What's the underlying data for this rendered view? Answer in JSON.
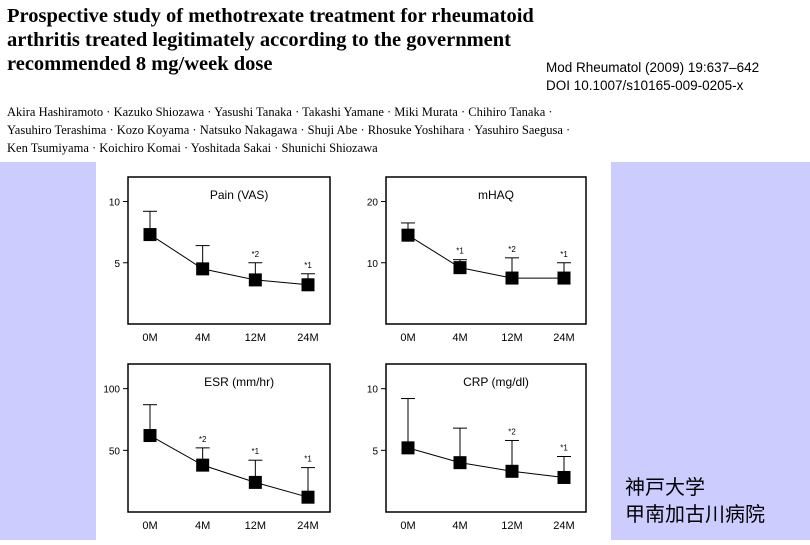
{
  "paper": {
    "title": "Prospective study of methotrexate treatment for rheumatoid arthritis treated legitimately according to the government recommended 8 mg/week dose",
    "title_lines": [
      "Prospective study of methotrexate treatment for rheumatoid",
      "arthritis treated legitimately according to the government",
      "recommended 8 mg/week dose"
    ],
    "journal": "Mod Rheumatol (2009) 19:637–642",
    "doi": "DOI 10.1007/s10165-009-0205-x",
    "author_lines": [
      "Akira Hashiramoto · Kazuko Shiozawa · Yasushi Tanaka · Takashi Yamane · Miki Murata · Chihiro Tanaka ·",
      "Yasuhiro Terashima · Kozo Koyama · Natsuko Nakagawa · Shuji Abe · Rhosuke Yoshihara · Yasuhiro Saegusa ·",
      "Ken Tsumiyama · Koichiro Komai · Yoshitada Sakai · Shunichi Shiozawa"
    ]
  },
  "institution": {
    "line1": "神戸大学",
    "line2": "甲南加古川病院"
  },
  "colors": {
    "band": "#ccccff",
    "marker": "#000000"
  },
  "chart_data": [
    {
      "type": "line",
      "title": "Pain (VAS)",
      "categories": [
        "0M",
        "4M",
        "12M",
        "24M"
      ],
      "values": [
        7.3,
        4.5,
        3.6,
        3.2
      ],
      "error_upper": [
        9.2,
        6.4,
        5.0,
        4.1
      ],
      "significance": [
        "",
        "",
        "*2",
        "*1"
      ],
      "yticks": [
        5,
        10
      ],
      "ylim": [
        0,
        12
      ]
    },
    {
      "type": "line",
      "title": "mHAQ",
      "categories": [
        "0M",
        "4M",
        "12M",
        "24M"
      ],
      "values": [
        14.5,
        9.2,
        7.5,
        7.5
      ],
      "error_upper": [
        16.5,
        10.5,
        10.8,
        10.0
      ],
      "significance": [
        "",
        "*1",
        "*2",
        "*1"
      ],
      "yticks": [
        10,
        20
      ],
      "ylim": [
        0,
        24
      ]
    },
    {
      "type": "line",
      "title": "ESR (mm/hr)",
      "categories": [
        "0M",
        "4M",
        "12M",
        "24M"
      ],
      "values": [
        62,
        38,
        24,
        12
      ],
      "error_upper": [
        87,
        52,
        42,
        36
      ],
      "significance": [
        "",
        "*2",
        "*1",
        "*1"
      ],
      "yticks": [
        50,
        100
      ],
      "ylim": [
        0,
        120
      ]
    },
    {
      "type": "line",
      "title": "CRP (mg/dl)",
      "categories": [
        "0M",
        "4M",
        "12M",
        "24M"
      ],
      "values": [
        5.2,
        4.0,
        3.3,
        2.8
      ],
      "error_upper": [
        9.2,
        6.8,
        5.8,
        4.5
      ],
      "significance": [
        "",
        "",
        "*2",
        "*1"
      ],
      "yticks": [
        5,
        10
      ],
      "ylim": [
        0,
        12
      ]
    }
  ]
}
